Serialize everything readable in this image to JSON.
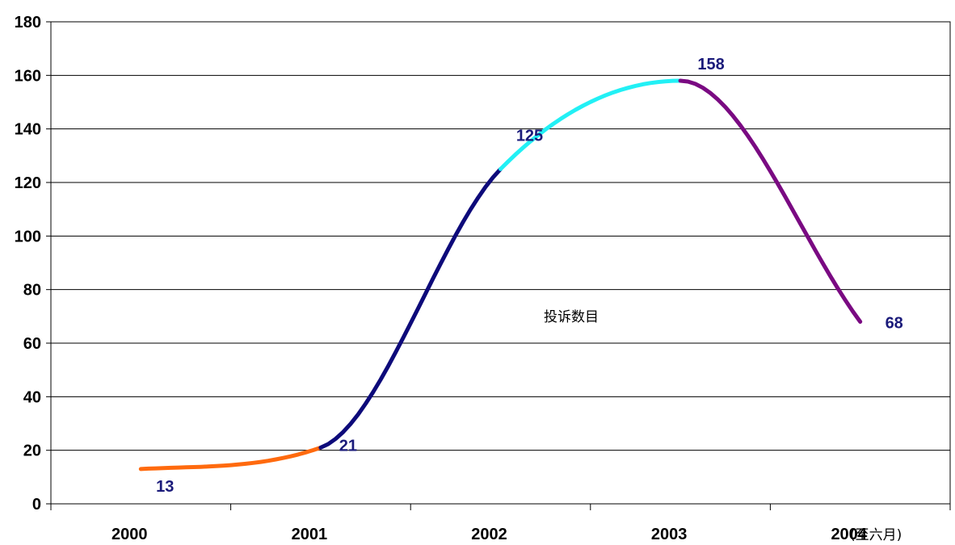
{
  "chart_data": {
    "type": "line",
    "title": "",
    "xlabel": "",
    "ylabel": "",
    "ylim": [
      0,
      180
    ],
    "yticks": [
      "0",
      "20",
      "40",
      "60",
      "80",
      "100",
      "120",
      "140",
      "160",
      "180"
    ],
    "categories": [
      "2000",
      "2001",
      "2002",
      "2003",
      "2004"
    ],
    "category_note": "(至六月)",
    "grid": true,
    "legend": "none",
    "annotation": "投诉数目",
    "values": [
      13,
      21,
      125,
      158,
      68
    ],
    "data_labels": [
      "13",
      "21",
      "125",
      "158",
      "68"
    ],
    "segment_colors": [
      "#ff6a0e",
      "#0d0a7a",
      "#22f0f5",
      "#7a0a82"
    ],
    "label_color": "#1a1a7a"
  }
}
